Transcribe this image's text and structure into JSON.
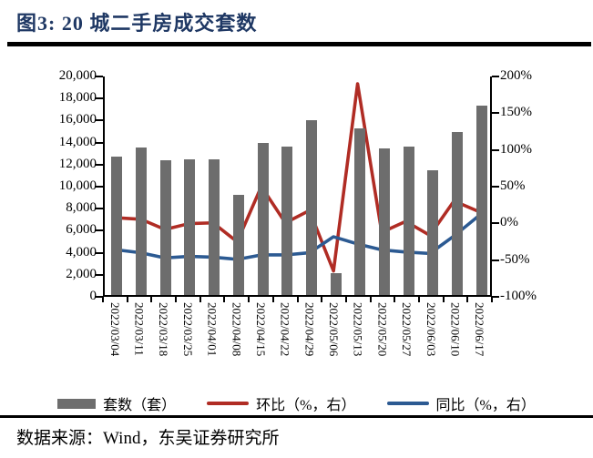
{
  "figure": {
    "title": "图3: 20 城二手房成交套数",
    "source": "数据来源：Wind，东吴证券研究所"
  },
  "legend": {
    "bars": "套数（套）",
    "wow": "环比（%，右）",
    "yoy": "同比（%，右）"
  },
  "colors": {
    "title": "#1f3864",
    "bar": "#6d6d6d",
    "wow_line": "#b02c24",
    "yoy_line": "#2c5a92",
    "axis": "#000000",
    "rule": "#000000"
  },
  "chart_data": {
    "type": "bar",
    "subtype": "bar-with-two-lines",
    "title": "20 城二手房成交套数",
    "categories": [
      "2022/03/04",
      "2022/03/11",
      "2022/03/18",
      "2022/03/25",
      "2022/04/01",
      "2022/04/08",
      "2022/04/15",
      "2022/04/22",
      "2022/04/29",
      "2022/05/06",
      "2022/05/13",
      "2022/05/20",
      "2022/05/27",
      "2022/06/03",
      "2022/06/10",
      "2022/06/17"
    ],
    "series": [
      {
        "name": "套数（套）",
        "type": "bar",
        "axis": "left",
        "color": "#6d6d6d",
        "values": [
          12600,
          13400,
          12200,
          12300,
          12300,
          9100,
          13800,
          13500,
          15900,
          2000,
          15100,
          13300,
          13500,
          11300,
          14800,
          17200
        ]
      },
      {
        "name": "环比（%，右）",
        "type": "line",
        "axis": "right",
        "color": "#b02c24",
        "values": [
          6,
          4,
          -10,
          -2,
          -1,
          -27,
          49,
          -1,
          16,
          -67,
          190,
          -14,
          1,
          -18,
          29,
          15
        ]
      },
      {
        "name": "同比（%，右）",
        "type": "line",
        "axis": "right",
        "color": "#2c5a92",
        "values": [
          -38,
          -42,
          -49,
          -47,
          -48,
          -51,
          -45,
          -45,
          -42,
          -20,
          -30,
          -38,
          -41,
          -43,
          -19,
          8
        ]
      }
    ],
    "left_axis": {
      "min": 0,
      "max": 20000,
      "step": 2000,
      "tick_labels": [
        "20,000",
        "18,000",
        "16,000",
        "14,000",
        "12,000",
        "10,000",
        "8,000",
        "6,000",
        "4,000",
        "2,000",
        "0"
      ]
    },
    "right_axis": {
      "min": -100,
      "max": 200,
      "step": 50,
      "tick_labels": [
        "200%",
        "150%",
        "100%",
        "50%",
        "0%",
        "-50%",
        "-100%"
      ]
    },
    "grid": false,
    "legend_position": "bottom"
  }
}
